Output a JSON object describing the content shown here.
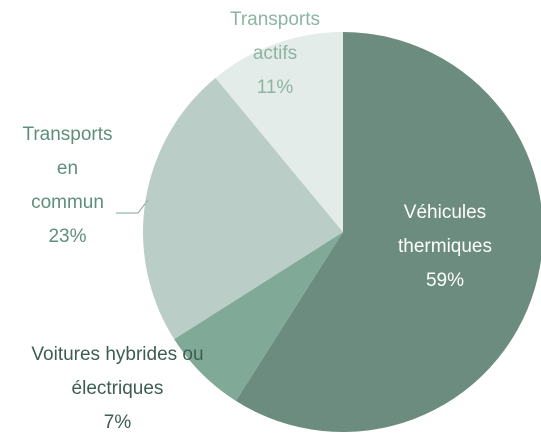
{
  "chart_data": {
    "type": "pie",
    "categories": [
      "Véhicules thermiques",
      "Voitures hybrides ou électriques",
      "Transports en commun",
      "Transports actifs"
    ],
    "values": [
      59,
      7,
      23,
      11
    ],
    "value_labels": [
      "59%",
      "7%",
      "23%",
      "11%"
    ],
    "colors": [
      "#6b8c7e",
      "#80aa97",
      "#bacdc6",
      "#e4ece9"
    ]
  }
}
